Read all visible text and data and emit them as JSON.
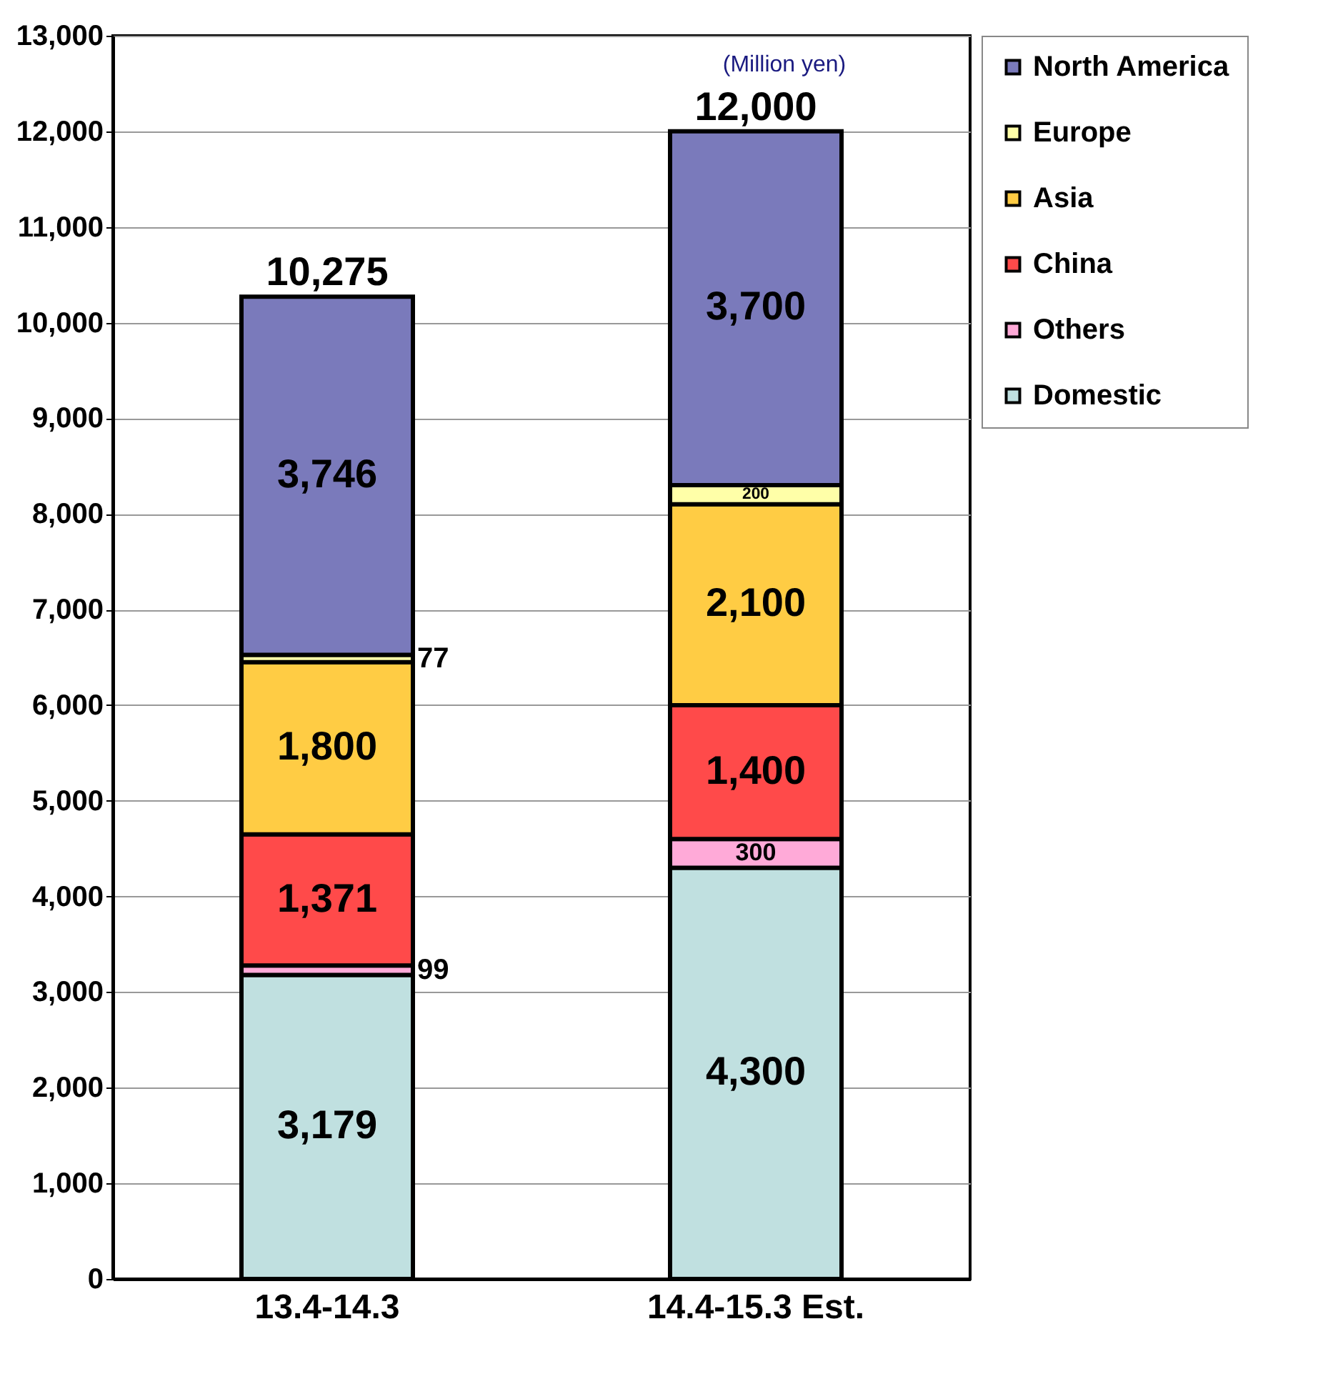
{
  "chart_data": {
    "type": "bar",
    "stacked": true,
    "categories": [
      "13.4-14.3",
      "14.4-15.3 Est."
    ],
    "series": [
      {
        "name": "Domestic",
        "color": "#c0e0e0",
        "values": [
          3179,
          4300
        ],
        "value_labels": [
          "3,179",
          "4,300"
        ]
      },
      {
        "name": "Others",
        "color": "#ffaad8",
        "values": [
          99,
          300
        ],
        "value_labels": [
          "99",
          "300"
        ]
      },
      {
        "name": "China",
        "color": "#ff4a4a",
        "values": [
          1371,
          1400
        ],
        "value_labels": [
          "1,371",
          "1,400"
        ]
      },
      {
        "name": "Asia",
        "color": "#ffcc44",
        "values": [
          1800,
          2100
        ],
        "value_labels": [
          "1,800",
          "2,100"
        ]
      },
      {
        "name": "Europe",
        "color": "#ffffa8",
        "values": [
          77,
          200
        ],
        "value_labels": [
          "77",
          "200"
        ]
      },
      {
        "name": "North America",
        "color": "#7a7abb",
        "values": [
          3746,
          3700
        ],
        "value_labels": [
          "3,746",
          "3,700"
        ]
      }
    ],
    "totals": [
      "10,275",
      "12,000"
    ],
    "ylim": [
      0,
      13000
    ],
    "yticks": [
      {
        "value": 0,
        "label": "0"
      },
      {
        "value": 1000,
        "label": "1,000"
      },
      {
        "value": 2000,
        "label": "2,000"
      },
      {
        "value": 3000,
        "label": "3,000"
      },
      {
        "value": 4000,
        "label": "4,000"
      },
      {
        "value": 5000,
        "label": "5,000"
      },
      {
        "value": 6000,
        "label": "6,000"
      },
      {
        "value": 7000,
        "label": "7,000"
      },
      {
        "value": 8000,
        "label": "8,000"
      },
      {
        "value": 9000,
        "label": "9,000"
      },
      {
        "value": 10000,
        "label": "10,000"
      },
      {
        "value": 11000,
        "label": "11,000"
      },
      {
        "value": 12000,
        "label": "12,000"
      },
      {
        "value": 13000,
        "label": "13,000"
      }
    ],
    "grid": "y",
    "legend": "right",
    "annotations": [
      "(Million yen)"
    ]
  }
}
